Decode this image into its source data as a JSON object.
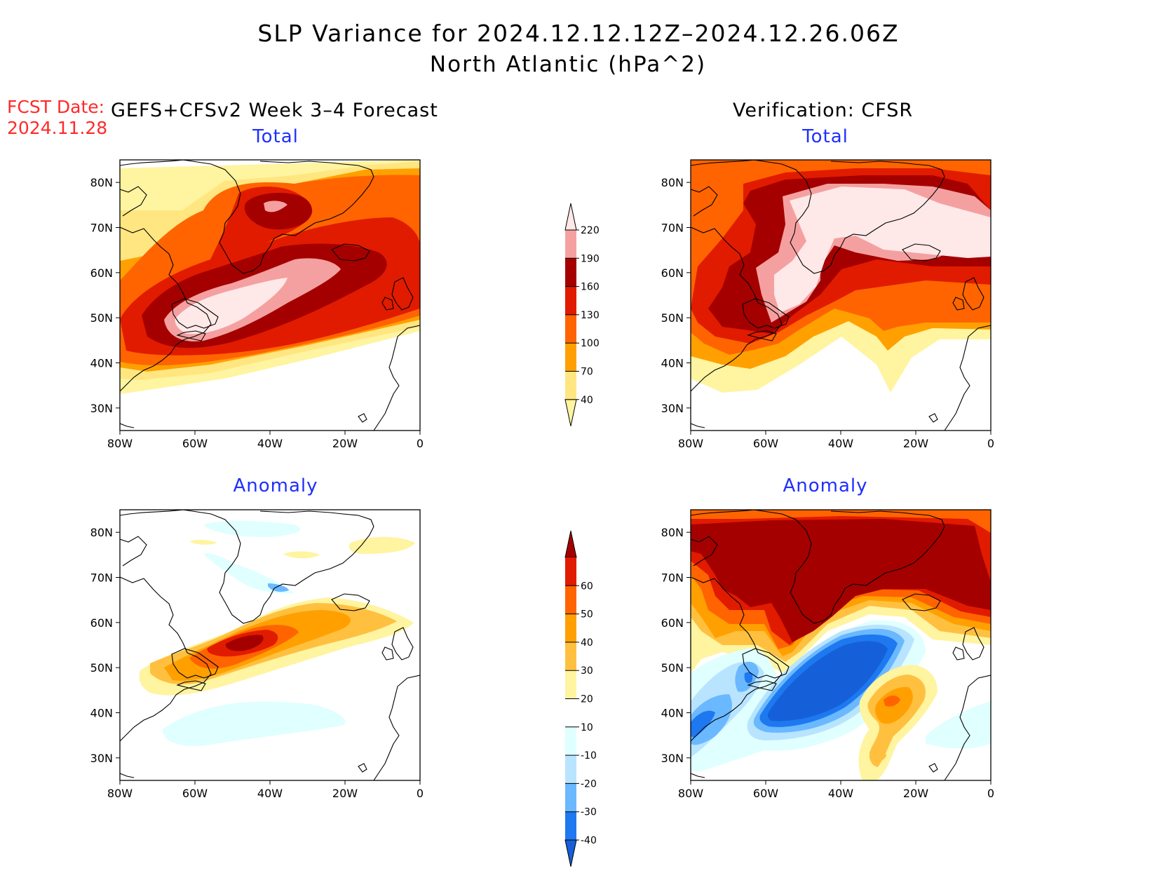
{
  "title": "SLP Variance for 2024.12.12.12Z–2024.12.26.06Z",
  "subtitle": "North Atlantic (hPa^2)",
  "forecast_date": {
    "label": "FCST Date:",
    "value": "2024.11.28"
  },
  "left_column": "GEFS+CFSv2 Week 3–4 Forecast",
  "right_column": "Verification: CFSR",
  "panels": {
    "forecast_total": "Total",
    "verification_total": "Total",
    "forecast_anomaly": "Anomaly",
    "verification_anomaly": "Anomaly"
  },
  "axes": {
    "lat_labels": [
      "80N",
      "70N",
      "60N",
      "50N",
      "40N",
      "30N"
    ],
    "lon_labels": [
      "80W",
      "60W",
      "40W",
      "20W",
      "0"
    ]
  },
  "colorbars": {
    "total": {
      "levels": [
        "40",
        "70",
        "100",
        "130",
        "160",
        "190",
        "220"
      ],
      "colors": [
        "#fff4a0",
        "#ffe680",
        "#ffa000",
        "#ff6400",
        "#e11b00",
        "#a50000",
        "#f5a0a0",
        "#ffe8e8"
      ]
    },
    "anomaly": {
      "levels": [
        "-40",
        "-30",
        "-20",
        "-10",
        "10",
        "20",
        "30",
        "40",
        "50",
        "60"
      ],
      "colors": [
        "#1560d8",
        "#1e78f0",
        "#6ab8ff",
        "#b8e4ff",
        "#e0ffff",
        "#ffffff",
        "#fff4a0",
        "#ffc040",
        "#ffa000",
        "#ff6400",
        "#e11b00",
        "#a50000"
      ]
    }
  },
  "chart_data": [
    {
      "type": "heatmap",
      "title": "Total",
      "column": "GEFS+CFSv2 Week 3–4 Forecast",
      "xlim": [
        -80,
        0
      ],
      "ylim": [
        25,
        85
      ],
      "unit": "hPa^2"
    },
    {
      "type": "heatmap",
      "title": "Total",
      "column": "Verification: CFSR",
      "xlim": [
        -80,
        0
      ],
      "ylim": [
        25,
        85
      ],
      "unit": "hPa^2"
    },
    {
      "type": "heatmap",
      "title": "Anomaly",
      "column": "GEFS+CFSv2 Week 3–4 Forecast",
      "xlim": [
        -80,
        0
      ],
      "ylim": [
        25,
        85
      ],
      "unit": "hPa^2"
    },
    {
      "type": "heatmap",
      "title": "Anomaly",
      "column": "Verification: CFSR",
      "xlim": [
        -80,
        0
      ],
      "ylim": [
        25,
        85
      ],
      "unit": "hPa^2"
    }
  ]
}
